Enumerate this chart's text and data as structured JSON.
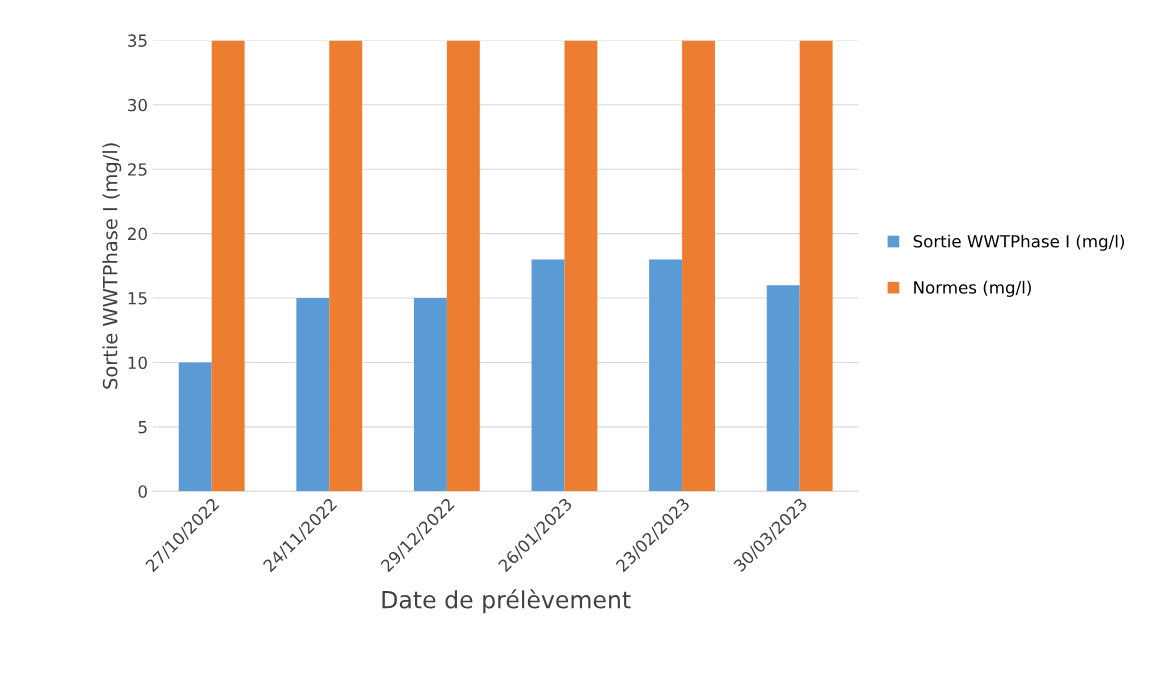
{
  "chart_data": {
    "type": "bar",
    "xlabel": "Date de prélèvement",
    "ylabel": "Sortie WWTPhase I (mg/l)",
    "categories": [
      "27/10/2022",
      "24/11/2022",
      "29/12/2022",
      "26/01/2023",
      "23/02/2023",
      "30/03/2023"
    ],
    "series": [
      {
        "name": "Sortie WWTPhase I (mg/l)",
        "color": "#5b9bd5",
        "values": [
          10,
          15,
          15,
          18,
          18,
          16
        ]
      },
      {
        "name": "Normes (mg/l)",
        "color": "#ed7d31",
        "values": [
          35,
          35,
          35,
          35,
          35,
          35
        ]
      }
    ],
    "ylim": [
      0,
      35
    ],
    "yticks": [
      0,
      5,
      10,
      15,
      20,
      25,
      30,
      35
    ],
    "grid": "y",
    "legend": "right"
  }
}
